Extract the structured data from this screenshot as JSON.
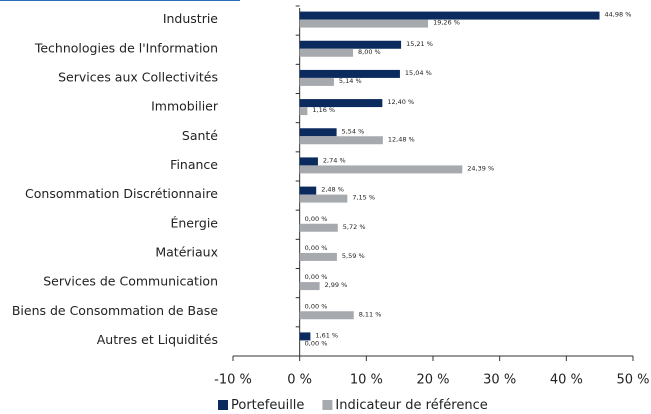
{
  "chart_data": {
    "type": "bar",
    "orientation": "horizontal",
    "categories": [
      "Industrie",
      "Technologies de l'Information",
      "Services aux Collectivités",
      "Immobilier",
      "Santé",
      "Finance",
      "Consommation Discrétionnaire",
      "Énergie",
      "Matériaux",
      "Services de Communication",
      "Biens de Consommation de Base",
      "Autres et Liquidités"
    ],
    "series": [
      {
        "name": "Portefeuille",
        "color": "#0b2b5e",
        "values": [
          44.98,
          15.21,
          15.04,
          12.4,
          5.54,
          2.74,
          2.48,
          0.0,
          0.0,
          0.0,
          0.0,
          1.61
        ],
        "value_labels": [
          "44,98 %",
          "15,21 %",
          "15,04 %",
          "12,40 %",
          "5,54 %",
          "2,74 %",
          "2,48 %",
          "0,00 %",
          "0,00 %",
          "0,00 %",
          "0,00 %",
          "1,61 %"
        ]
      },
      {
        "name": "Indicateur de référence",
        "color": "#a6aaaf",
        "values": [
          19.26,
          8.0,
          5.14,
          1.16,
          12.48,
          24.39,
          7.15,
          5.72,
          5.59,
          2.99,
          8.11,
          0.0
        ],
        "value_labels": [
          "19,26 %",
          "8,00 %",
          "5,14 %",
          "1,16 %",
          "12,48 %",
          "24,39 %",
          "7,15 %",
          "5,72 %",
          "5,59 %",
          "2,99 %",
          "8,11 %",
          "0,00 %"
        ]
      }
    ],
    "xlim": [
      -10,
      50
    ],
    "xticks": [
      {
        "value": -10,
        "label": "-10 %"
      },
      {
        "value": 0,
        "label": "0 %"
      },
      {
        "value": 10,
        "label": "10 %"
      },
      {
        "value": 20,
        "label": "20 %"
      },
      {
        "value": 30,
        "label": "30 %"
      },
      {
        "value": 40,
        "label": "40 %"
      },
      {
        "value": 50,
        "label": "50 %"
      }
    ],
    "legend": "bottom"
  }
}
